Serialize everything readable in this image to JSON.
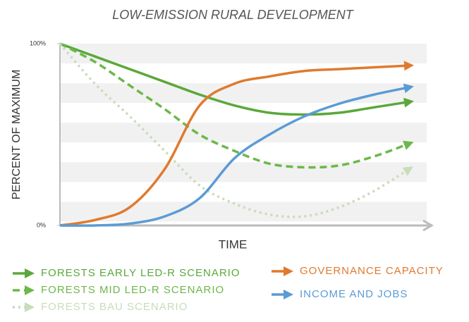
{
  "chart_data": {
    "type": "line",
    "title": "LOW-EMISSION RURAL DEVELOPMENT",
    "y_label": "PERCENT OF MAXIMUM",
    "x_label": "TIME",
    "categories": [
      null,
      null,
      null,
      null,
      null,
      null,
      null,
      null,
      null,
      null,
      null
    ],
    "ylim": [
      0,
      100
    ],
    "yticks": [
      {
        "value": 100,
        "label": "100%"
      },
      {
        "value": 0,
        "label": "0%"
      }
    ],
    "series": [
      {
        "name": "FORESTS EARLY LED-R SCENARIO",
        "color": "#5aa83a",
        "style": "solid",
        "values": [
          100,
          93,
          86,
          79,
          72,
          66,
          62,
          61,
          62,
          65,
          68
        ]
      },
      {
        "name": "FORESTS MID LED-R SCENARIO",
        "color": "#6cb84a",
        "style": "dashed",
        "values": [
          100,
          90,
          77,
          64,
          50,
          41,
          34,
          32,
          33,
          38,
          45
        ]
      },
      {
        "name": "FORESTS BAU SCENARIO",
        "color": "#c9dcb9",
        "style": "dotted",
        "values": [
          100,
          78,
          60,
          41,
          22,
          12,
          6,
          5,
          10,
          19,
          31
        ]
      },
      {
        "name": "GOVERNANCE CAPACITY",
        "color": "#e07a2e",
        "style": "solid",
        "values": [
          0,
          3,
          10,
          31,
          66,
          78,
          82,
          85,
          86,
          87,
          88
        ]
      },
      {
        "name": "INCOME AND JOBS",
        "color": "#5b9bd5",
        "style": "solid",
        "values": [
          0,
          0,
          1,
          5,
          15,
          37,
          50,
          60,
          67,
          72,
          76
        ]
      }
    ]
  }
}
